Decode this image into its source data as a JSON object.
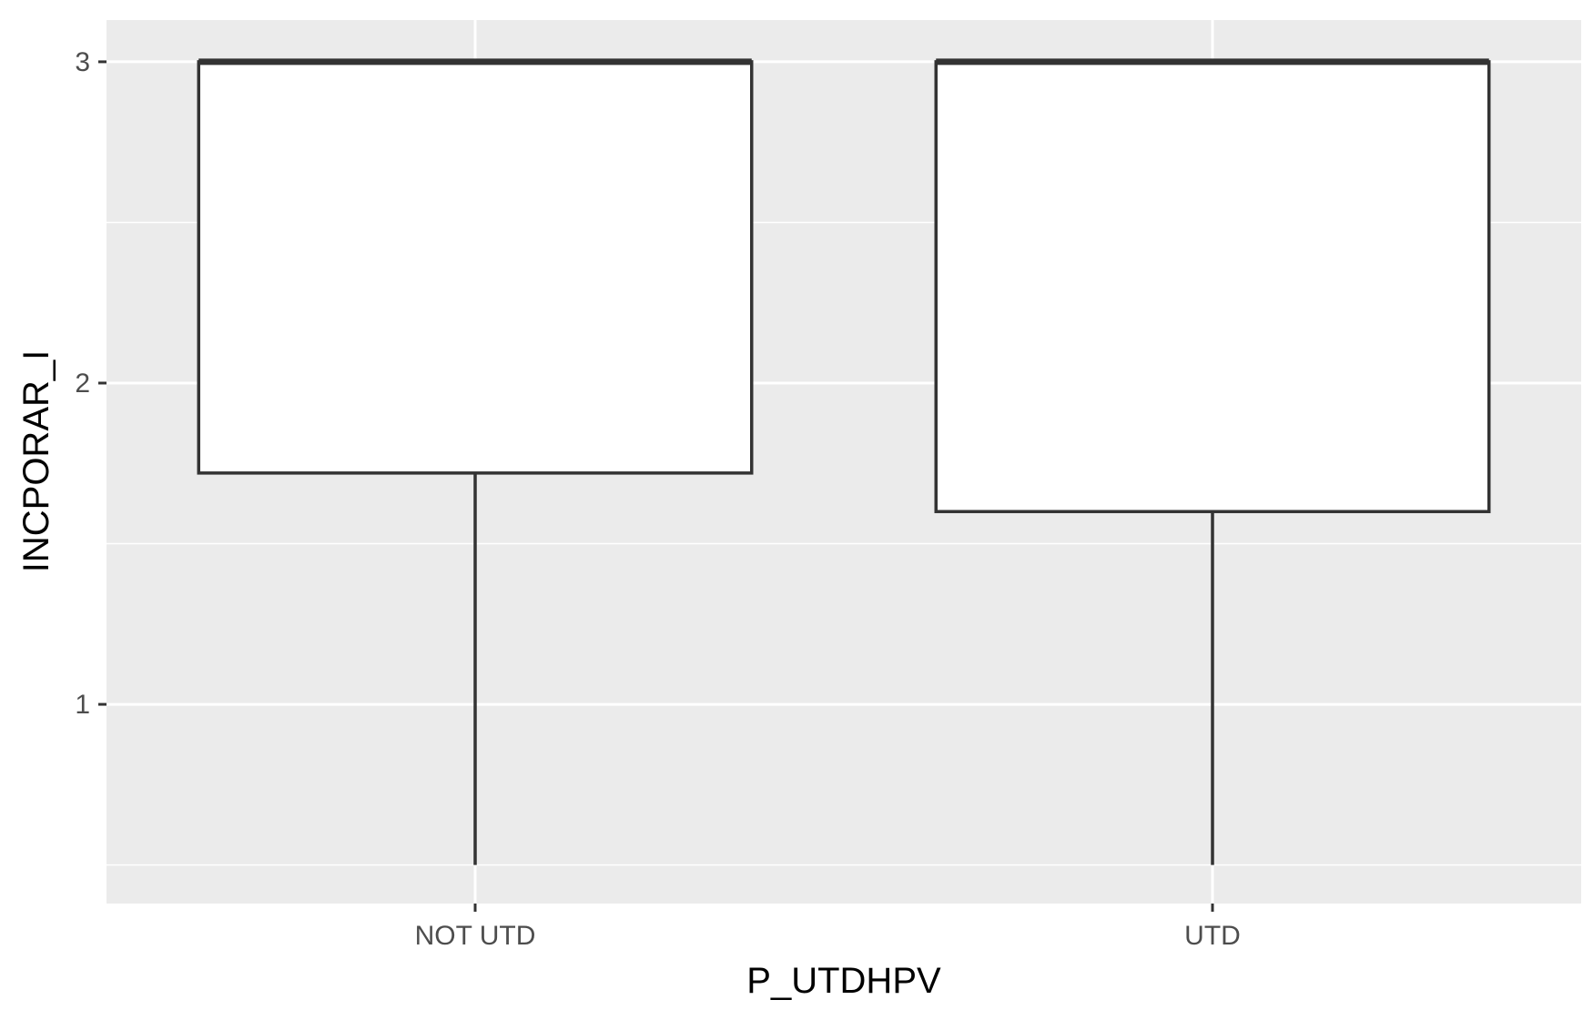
{
  "chart_data": {
    "type": "box",
    "xlabel": "P_UTDHPV",
    "ylabel": "INCPORAR_I",
    "categories": [
      "NOT UTD",
      "UTD"
    ],
    "boxes": [
      {
        "category": "NOT UTD",
        "min": 0.5,
        "q1": 1.72,
        "median": 3.0,
        "q3": 3.0,
        "max": 3.0
      },
      {
        "category": "UTD",
        "min": 0.5,
        "q1": 1.6,
        "median": 3.0,
        "q3": 3.0,
        "max": 3.0
      }
    ],
    "ylim": [
      0.38,
      3.13
    ],
    "yticks": [
      1,
      2,
      3
    ],
    "ytick_labels": [
      "1",
      "2",
      "3"
    ],
    "grid": true,
    "colors": {
      "panel": "#ebebeb",
      "grid": "#ffffff",
      "box_stroke": "#333333",
      "box_fill": "#ffffff"
    }
  }
}
